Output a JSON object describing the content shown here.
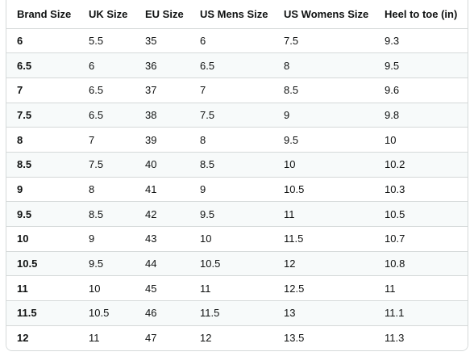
{
  "table": {
    "headers": [
      "Brand Size",
      "UK Size",
      "EU Size",
      "US Mens Size",
      "US Womens Size",
      "Heel to toe (in)"
    ],
    "rows": [
      [
        "6",
        "5.5",
        "35",
        "6",
        "7.5",
        "9.3"
      ],
      [
        "6.5",
        "6",
        "36",
        "6.5",
        "8",
        "9.5"
      ],
      [
        "7",
        "6.5",
        "37",
        "7",
        "8.5",
        "9.6"
      ],
      [
        "7.5",
        "6.5",
        "38",
        "7.5",
        "9",
        "9.8"
      ],
      [
        "8",
        "7",
        "39",
        "8",
        "9.5",
        "10"
      ],
      [
        "8.5",
        "7.5",
        "40",
        "8.5",
        "10",
        "10.2"
      ],
      [
        "9",
        "8",
        "41",
        "9",
        "10.5",
        "10.3"
      ],
      [
        "9.5",
        "8.5",
        "42",
        "9.5",
        "11",
        "10.5"
      ],
      [
        "10",
        "9",
        "43",
        "10",
        "11.5",
        "10.7"
      ],
      [
        "10.5",
        "9.5",
        "44",
        "10.5",
        "12",
        "10.8"
      ],
      [
        "11",
        "10",
        "45",
        "11",
        "12.5",
        "11"
      ],
      [
        "11.5",
        "10.5",
        "46",
        "11.5",
        "13",
        "11.1"
      ],
      [
        "12",
        "11",
        "47",
        "12",
        "13.5",
        "11.3"
      ]
    ]
  }
}
